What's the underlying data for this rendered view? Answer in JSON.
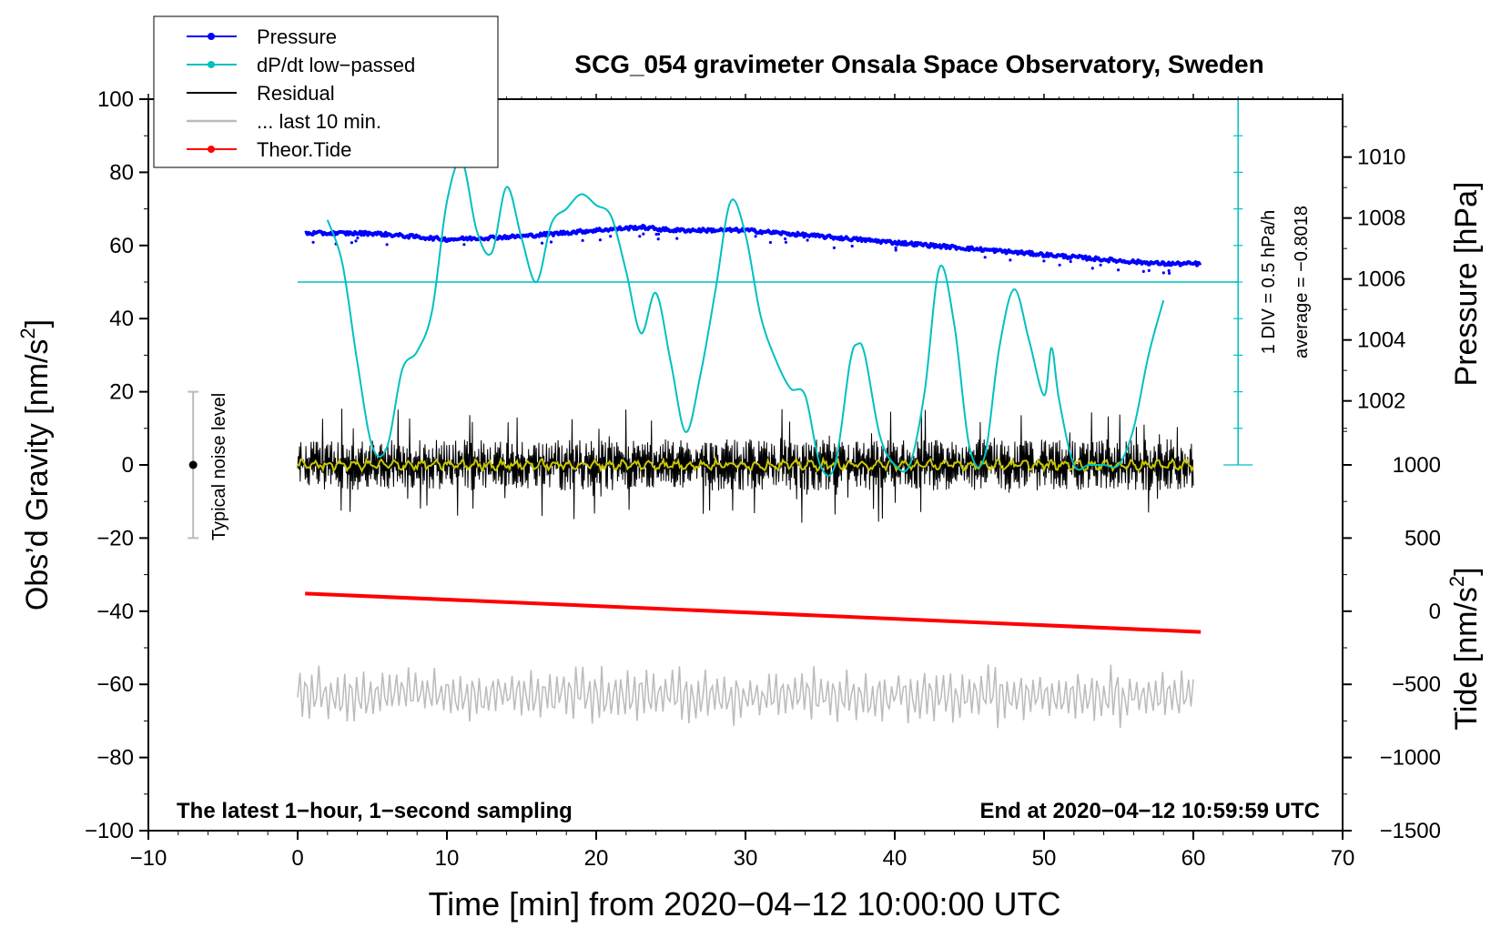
{
  "chart_data": {
    "type": "line",
    "title": "SCG_054 gravimeter Onsala Space Observatory, Sweden",
    "xlabel": "Time [min] from 2020−04−12 10:00:00 UTC",
    "ylabel_left": "Obs’d Gravity [nm/s",
    "ylabel_left_sup": "2",
    "ylabel_left_tail": "]",
    "ylabel_pressure": "Pressure [hPa]",
    "ylabel_tide": "Tide [nm/s",
    "ylabel_tide_sup": "2",
    "ylabel_tide_tail": "]",
    "xlim": [
      -10,
      70
    ],
    "ylim": [
      -100,
      100
    ],
    "x_ticks": [
      -10,
      0,
      10,
      20,
      30,
      40,
      50,
      60,
      70
    ],
    "x_tick_labels": [
      "−10",
      "0",
      "10",
      "20",
      "30",
      "40",
      "50",
      "60",
      "70"
    ],
    "y_ticks": [
      100,
      80,
      60,
      40,
      20,
      0,
      -20,
      -40,
      -60,
      -80,
      -100
    ],
    "y_tick_labels": [
      "100",
      "80",
      "60",
      "40",
      "20",
      "0",
      "−20",
      "−40",
      "−60",
      "−80",
      "−100"
    ],
    "pressure_ticks": [
      1010,
      1008,
      1006,
      1004,
      1002
    ],
    "pressure_tick_labels": [
      "1010",
      "1008",
      "1006",
      "1004",
      "1002"
    ],
    "pressure_axis_map": {
      "value_at_gravity_100": 1011.9,
      "value_at_gravity_0": 999.9
    },
    "tide_ticks": [
      1000,
      500,
      0,
      -500,
      -1000,
      -1500
    ],
    "tide_tick_labels": [
      "1000",
      "500",
      "0",
      "−500",
      "−1000",
      "−1500"
    ],
    "tide_axis_map": {
      "value_at_gravity_-100": -1500,
      "value_at_gravity_20": 1500
    },
    "legend": [
      {
        "label": "Pressure",
        "color": "#0000ff",
        "marker": true
      },
      {
        "label": "dP/dt low−passed",
        "color": "#00c0c0",
        "marker": true
      },
      {
        "label": "Residual",
        "color": "#000000",
        "marker": false
      },
      {
        "label": "... last 10 min.",
        "color": "#bbbbbb",
        "marker": false
      },
      {
        "label": "Theor.Tide",
        "color": "#ff0000",
        "marker": true
      }
    ],
    "series": [
      {
        "name": "Pressure",
        "color": "#0000ff",
        "units": "hPa",
        "x": [
          0.5,
          5,
          10,
          15,
          20,
          23,
          25,
          30,
          35,
          40,
          45,
          50,
          55,
          58,
          60.5
        ],
        "values": [
          1007.5,
          1007.5,
          1007.3,
          1007.4,
          1007.6,
          1007.7,
          1007.6,
          1007.6,
          1007.4,
          1007.2,
          1007.0,
          1006.8,
          1006.6,
          1006.5,
          1006.5
        ]
      },
      {
        "name": "dP/dt low−passed",
        "color": "#00c0c0",
        "units": "gravity-axis units",
        "x": [
          2,
          3,
          4,
          5,
          6,
          7,
          8,
          9,
          10,
          11,
          12,
          13,
          14,
          15,
          16,
          17,
          18,
          19,
          20,
          21,
          22,
          23,
          24,
          25,
          26,
          27,
          28,
          29,
          30,
          31,
          32,
          33,
          34,
          35,
          36,
          37,
          37.5,
          38,
          39,
          40,
          41,
          42,
          43,
          44,
          45,
          46,
          47,
          48,
          49,
          50,
          50.5,
          51,
          52,
          53,
          54,
          55,
          56,
          57,
          58
        ],
        "values": [
          67,
          55,
          28,
          5,
          5,
          26,
          31,
          42,
          72,
          83,
          64,
          58,
          76,
          62,
          50,
          66,
          70,
          74,
          71,
          68,
          53,
          36,
          47,
          28,
          9,
          25,
          48,
          72,
          63,
          41,
          29,
          21,
          19,
          0,
          0,
          28,
          33,
          30,
          8,
          0,
          0,
          20,
          54,
          38,
          5,
          2,
          32,
          48,
          34,
          19,
          32,
          18,
          0,
          0,
          0,
          0,
          10,
          30,
          45
        ]
      },
      {
        "name": "dP/dt average",
        "color": "#00c0c0",
        "units": "gravity-axis units",
        "x": [
          0,
          63
        ],
        "values": [
          50,
          50
        ]
      },
      {
        "name": "Residual",
        "color": "#000000",
        "units": "nm/s2",
        "x_range": [
          0,
          60
        ],
        "mean": 0,
        "amplitude": 10
      },
      {
        "name": "Residual smoothed",
        "color": "#c8c800",
        "units": "nm/s2",
        "x_range": [
          0,
          60
        ],
        "mean": 0,
        "amplitude": 1.5
      },
      {
        "name": "... last 10 min.",
        "color": "#bbbbbb",
        "units": "gravity-axis units",
        "x_range": [
          0,
          60
        ],
        "mean": -63,
        "amplitude": 8
      },
      {
        "name": "Theor.Tide",
        "color": "#ff0000",
        "units": "nm/s2",
        "x": [
          0.5,
          60.5
        ],
        "values": [
          121,
          -142
        ]
      }
    ],
    "dpdt_scale": {
      "label_div": "1 DIV = 0.5 hPa/h",
      "label_avg": "average = −0.8018",
      "x": 63,
      "ylim": [
        0,
        100
      ],
      "divisions": 10
    },
    "noise_bar": {
      "label": "Typical noise level",
      "x": -7,
      "center": 0,
      "half_range": 20
    },
    "annotation_left": "The latest 1−hour, 1−second sampling",
    "annotation_right": "End at 2020−04−12 10:59:59 UTC"
  }
}
